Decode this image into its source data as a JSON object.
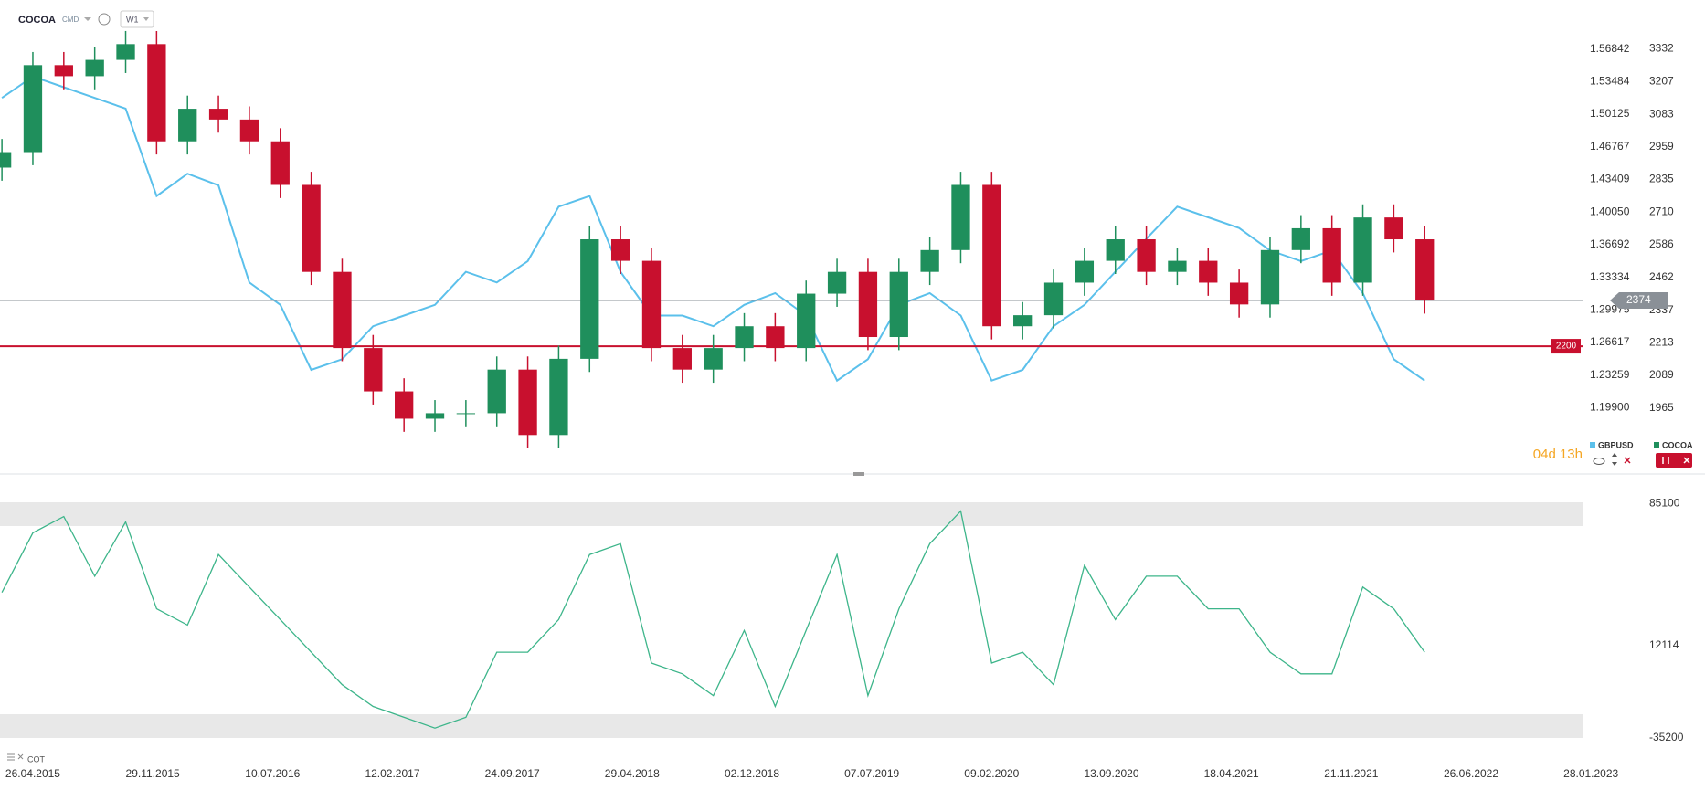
{
  "chart_data": {
    "type": "candlestick",
    "title": "COCOA",
    "subtitle": "CMD",
    "timeframe": "W1",
    "countdown": "04d 13h",
    "name": "COCOA",
    "up_color": "#1f8f5c",
    "down_color": "#c8102e",
    "x": [
      -8,
      0,
      8,
      16,
      24,
      32,
      40,
      48,
      56,
      64,
      72,
      80,
      88,
      96,
      104,
      112,
      120,
      128,
      136,
      144,
      152,
      160,
      168,
      176,
      184,
      192,
      200,
      208,
      216,
      224,
      232,
      240,
      248,
      256,
      264,
      272,
      280,
      288,
      296,
      304,
      312,
      320,
      328,
      336,
      344,
      352,
      360
    ],
    "open": [
      2880,
      2939,
      3270,
      3228,
      3290,
      3350,
      2980,
      3104,
      3063,
      2980,
      2814,
      2483,
      2193,
      2028,
      1924,
      1945,
      1945,
      2111,
      1862,
      2152,
      2607,
      2525,
      2193,
      2111,
      2193,
      2276,
      2193,
      2400,
      2483,
      2235,
      2483,
      2566,
      2814,
      2276,
      2318,
      2442,
      2525,
      2607,
      2483,
      2525,
      2442,
      2359,
      2566,
      2649,
      2442,
      2690,
      2607
    ],
    "high": [
      2989,
      3320,
      3320,
      3340,
      3400,
      3400,
      3154,
      3154,
      3113,
      3030,
      2864,
      2533,
      2243,
      2078,
      1995,
      1995,
      2161,
      2161,
      2202,
      2657,
      2657,
      2575,
      2243,
      2243,
      2326,
      2326,
      2450,
      2533,
      2533,
      2533,
      2616,
      2864,
      2864,
      2368,
      2492,
      2575,
      2657,
      2657,
      2575,
      2575,
      2492,
      2616,
      2699,
      2699,
      2740,
      2740,
      2657
    ],
    "low": [
      2830,
      2889,
      3178,
      3178,
      3240,
      2930,
      2930,
      3013,
      2930,
      2764,
      2433,
      2143,
      1978,
      1874,
      1874,
      1895,
      1895,
      1812,
      1812,
      2102,
      2475,
      2143,
      2061,
      2061,
      2143,
      2143,
      2143,
      2350,
      2185,
      2185,
      2433,
      2516,
      2226,
      2226,
      2268,
      2392,
      2475,
      2433,
      2433,
      2392,
      2309,
      2309,
      2516,
      2392,
      2392,
      2557,
      2324
    ],
    "close": [
      2939,
      3270,
      3228,
      3290,
      3350,
      2980,
      3104,
      3063,
      2980,
      2814,
      2483,
      2193,
      2028,
      1924,
      1945,
      1945,
      2111,
      1862,
      2152,
      2607,
      2525,
      2193,
      2111,
      2193,
      2276,
      2193,
      2400,
      2483,
      2235,
      2483,
      2566,
      2814,
      2276,
      2318,
      2442,
      2525,
      2607,
      2483,
      2525,
      2442,
      2359,
      2566,
      2649,
      2442,
      2690,
      2607,
      2374
    ],
    "xlim": [
      -8.5,
      432.5
    ],
    "xticks": [
      {
        "value": 0,
        "label": "26.04.2015"
      },
      {
        "value": 31,
        "label": "29.11.2015"
      },
      {
        "value": 62,
        "label": "10.07.2016"
      },
      {
        "value": 93,
        "label": "12.02.2017"
      },
      {
        "value": 124,
        "label": "24.09.2017"
      },
      {
        "value": 155,
        "label": "29.04.2018"
      },
      {
        "value": 186,
        "label": "02.12.2018"
      },
      {
        "value": 217,
        "label": "07.07.2019"
      },
      {
        "value": 248,
        "label": "09.02.2020"
      },
      {
        "value": 279,
        "label": "13.09.2020"
      },
      {
        "value": 310,
        "label": "18.04.2021"
      },
      {
        "value": 341,
        "label": "21.11.2021"
      },
      {
        "value": 372,
        "label": "26.06.2022"
      },
      {
        "value": 403,
        "label": "28.01.2023"
      }
    ],
    "ylim": [
      1717,
      3518
    ],
    "yticks": [
      3332,
      3207,
      3083,
      2959,
      2835,
      2710,
      2586,
      2462,
      2337,
      2213,
      2089,
      1965
    ],
    "y2lim": [
      1.1318,
      1.6188
    ],
    "y2ticks": [
      1.56842,
      1.53484,
      1.50125,
      1.46767,
      1.43409,
      {
        "value": 1.4005,
        "label": "1.40050"
      },
      1.36692,
      1.33334,
      1.29975,
      1.26617,
      1.23259,
      {
        "value": 1.199,
        "label": "1.19900"
      }
    ],
    "overlay": {
      "name": "GBPUSD",
      "color": "#5bc0eb",
      "axis": "y2",
      "values": [
        1.518,
        1.54,
        1.529,
        1.518,
        1.507,
        1.417,
        1.44,
        1.428,
        1.328,
        1.305,
        1.238,
        1.249,
        1.283,
        1.294,
        1.305,
        1.339,
        1.328,
        1.35,
        1.406,
        1.417,
        1.339,
        1.294,
        1.294,
        1.283,
        1.305,
        1.317,
        1.294,
        1.227,
        1.249,
        1.305,
        1.317,
        1.294,
        1.227,
        1.238,
        1.283,
        1.305,
        1.339,
        1.373,
        1.406,
        1.395,
        1.384,
        1.361,
        1.35,
        1.361,
        1.317,
        1.249,
        1.227
      ]
    },
    "price_lines": [
      {
        "value": 2374,
        "color": "#8a9097"
      },
      {
        "value": 2200,
        "color": "#c8102e"
      }
    ],
    "indicator": {
      "type": "line",
      "name": "COT",
      "color": "#3db58a",
      "values": [
        39426,
        70061,
        78416,
        47781,
        75631,
        31071,
        22716,
        58921,
        42211,
        25501,
        8791,
        -7919,
        -19059,
        -24629,
        -30199,
        -24629,
        8791,
        8791,
        25501,
        58921,
        64491,
        3221,
        -2349,
        -13489,
        19921,
        -19059,
        19921,
        58921,
        -13489,
        31071,
        64491,
        81201,
        3221,
        8791,
        -7919,
        53361,
        25501,
        47781,
        47781,
        31071,
        31071,
        8791,
        -2349,
        -2349,
        42211,
        31071,
        8791
      ],
      "ylim": [
        -41339,
        97911
      ],
      "yticks": [
        85100,
        12114,
        -35200
      ]
    }
  }
}
